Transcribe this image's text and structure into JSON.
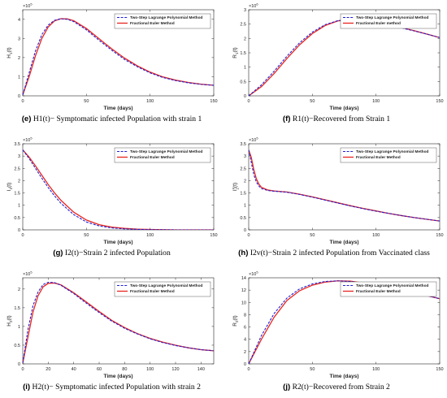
{
  "colors": {
    "two_step": "#1f1fd8",
    "euler": "#e8251e",
    "axis": "#262626"
  },
  "chart_data": [
    {
      "id": "e",
      "type": "line",
      "ylabel": "H1(t)",
      "xlabel": "Time (days)",
      "exponent": "×10^5",
      "xlim": [
        0,
        150
      ],
      "ylim": [
        0,
        4.5
      ],
      "xticks": [
        0,
        50,
        100,
        150
      ],
      "yticks": [
        0,
        1,
        2,
        3,
        4
      ],
      "legend": "top-right",
      "series": [
        {
          "name": "Two-Step Lagrange Polynomial Method",
          "style": "dashed",
          "x": [
            0,
            5,
            10,
            15,
            20,
            25,
            30,
            35,
            40,
            50,
            60,
            70,
            80,
            90,
            100,
            110,
            120,
            130,
            140,
            150
          ],
          "y": [
            0.05,
            1.2,
            2.35,
            3.2,
            3.7,
            3.95,
            4.03,
            4.0,
            3.88,
            3.45,
            2.9,
            2.38,
            1.9,
            1.52,
            1.2,
            0.96,
            0.8,
            0.68,
            0.6,
            0.55
          ]
        },
        {
          "name": "Fractional Euler Method",
          "style": "solid",
          "x": [
            0,
            5,
            10,
            15,
            20,
            25,
            30,
            35,
            40,
            50,
            60,
            70,
            80,
            90,
            100,
            110,
            120,
            130,
            140,
            150
          ],
          "y": [
            0.05,
            1.0,
            2.1,
            3.0,
            3.6,
            3.92,
            4.03,
            4.02,
            3.93,
            3.52,
            2.98,
            2.45,
            1.97,
            1.57,
            1.24,
            0.99,
            0.82,
            0.7,
            0.61,
            0.55
          ]
        }
      ],
      "caption_label": "(e)",
      "caption_text": "H1(t)− Symptomatic infected Population with strain 1"
    },
    {
      "id": "f",
      "type": "line",
      "ylabel": "R1(t)",
      "xlabel": "Time (days)",
      "exponent": "×10^6",
      "xlim": [
        0,
        150
      ],
      "ylim": [
        0,
        3
      ],
      "xticks": [
        0,
        50,
        100,
        150
      ],
      "yticks": [
        0,
        0.5,
        1,
        1.5,
        2,
        2.5,
        3
      ],
      "legend": "top-right",
      "series": [
        {
          "name": "Two-Step Lagrange Polynomial Method",
          "style": "dashed",
          "x": [
            0,
            10,
            20,
            30,
            40,
            50,
            60,
            70,
            80,
            90,
            100,
            110,
            120,
            130,
            140,
            150
          ],
          "y": [
            0.0,
            0.38,
            0.86,
            1.38,
            1.85,
            2.22,
            2.48,
            2.62,
            2.66,
            2.64,
            2.58,
            2.48,
            2.37,
            2.26,
            2.15,
            2.03
          ]
        },
        {
          "name": "Fractional Euler method",
          "style": "solid",
          "x": [
            0,
            10,
            20,
            30,
            40,
            50,
            60,
            70,
            80,
            90,
            100,
            110,
            120,
            130,
            140,
            150
          ],
          "y": [
            0.0,
            0.32,
            0.78,
            1.3,
            1.78,
            2.17,
            2.45,
            2.61,
            2.66,
            2.65,
            2.59,
            2.5,
            2.38,
            2.27,
            2.15,
            2.03
          ]
        }
      ],
      "caption_label": "(f)",
      "caption_text": "R1(t)−Recovered from Strain 1"
    },
    {
      "id": "g",
      "type": "line",
      "ylabel": "I2(t)",
      "xlabel": "Time (days)",
      "exponent": "×10^5",
      "xlim": [
        0,
        150
      ],
      "ylim": [
        0,
        3.5
      ],
      "xticks": [
        0,
        50,
        100,
        150
      ],
      "yticks": [
        0,
        0.5,
        1,
        1.5,
        2,
        2.5,
        3,
        3.5
      ],
      "legend": "top-right",
      "series": [
        {
          "name": "Two-Step Lagrange Polynomial Method",
          "style": "dashed",
          "x": [
            0,
            5,
            10,
            15,
            20,
            25,
            30,
            40,
            50,
            60,
            70,
            80,
            90,
            100,
            120,
            150
          ],
          "y": [
            3.25,
            2.9,
            2.5,
            2.1,
            1.72,
            1.38,
            1.08,
            0.62,
            0.32,
            0.16,
            0.08,
            0.04,
            0.02,
            0.01,
            0.0,
            0.0
          ]
        },
        {
          "name": "Fractional Euler Method",
          "style": "solid",
          "x": [
            0,
            5,
            10,
            15,
            20,
            25,
            30,
            40,
            50,
            60,
            70,
            80,
            90,
            100,
            120,
            150
          ],
          "y": [
            3.25,
            2.96,
            2.6,
            2.22,
            1.84,
            1.5,
            1.2,
            0.72,
            0.4,
            0.21,
            0.11,
            0.06,
            0.03,
            0.015,
            0.0,
            0.0
          ]
        }
      ],
      "caption_label": "(g)",
      "caption_text": "I2(t)−Strain 2 infected Population"
    },
    {
      "id": "h",
      "type": "line",
      "ylabel": "I2v(t)",
      "xlabel": "Time (days)",
      "exponent": "×10^5",
      "xlim": [
        0,
        150
      ],
      "ylim": [
        0,
        3.5
      ],
      "xticks": [
        0,
        50,
        100,
        150
      ],
      "yticks": [
        0,
        0.5,
        1,
        1.5,
        2,
        2.5,
        3,
        3.5
      ],
      "legend": "top-right",
      "series": [
        {
          "name": "Two-Step Lagrange Polynomial Method",
          "style": "dashed",
          "x": [
            0,
            2,
            4,
            6,
            8,
            10,
            15,
            20,
            25,
            30,
            40,
            50,
            60,
            70,
            80,
            90,
            100,
            110,
            120,
            130,
            140,
            150
          ],
          "y": [
            3.25,
            2.75,
            2.25,
            1.95,
            1.78,
            1.68,
            1.6,
            1.57,
            1.55,
            1.53,
            1.44,
            1.33,
            1.21,
            1.09,
            0.97,
            0.86,
            0.76,
            0.67,
            0.58,
            0.5,
            0.43,
            0.36
          ]
        },
        {
          "name": "Fractional Euler Method",
          "style": "solid",
          "x": [
            0,
            2,
            4,
            6,
            8,
            10,
            15,
            20,
            25,
            30,
            40,
            50,
            60,
            70,
            80,
            90,
            100,
            110,
            120,
            130,
            140,
            150
          ],
          "y": [
            3.25,
            2.95,
            2.45,
            2.08,
            1.86,
            1.73,
            1.62,
            1.58,
            1.56,
            1.54,
            1.45,
            1.34,
            1.22,
            1.1,
            0.98,
            0.87,
            0.77,
            0.67,
            0.58,
            0.5,
            0.43,
            0.36
          ]
        }
      ],
      "caption_label": "(h)",
      "caption_text": "I2v(t)−Strain 2 infected Population from Vaccinated class"
    },
    {
      "id": "i",
      "type": "line",
      "ylabel": "H2(t)",
      "xlabel": "Time (days)",
      "exponent": "×10^5",
      "xlim": [
        0,
        150
      ],
      "ylim": [
        0,
        2.3
      ],
      "xticks": [
        0,
        20,
        40,
        60,
        80,
        100,
        120,
        140
      ],
      "yticks": [
        0,
        0.5,
        1,
        1.5,
        2
      ],
      "legend": "top-right",
      "series": [
        {
          "name": "Two-Step Lagrange Polynomial Method",
          "style": "dashed",
          "x": [
            0,
            4,
            8,
            12,
            16,
            20,
            25,
            30,
            40,
            50,
            60,
            70,
            80,
            90,
            100,
            110,
            120,
            130,
            140,
            150
          ],
          "y": [
            0.02,
            0.9,
            1.55,
            1.92,
            2.12,
            2.18,
            2.17,
            2.1,
            1.88,
            1.62,
            1.37,
            1.14,
            0.95,
            0.8,
            0.67,
            0.57,
            0.49,
            0.43,
            0.38,
            0.35
          ]
        },
        {
          "name": "Fractional Euler Method",
          "style": "solid",
          "x": [
            0,
            4,
            8,
            12,
            16,
            20,
            25,
            30,
            40,
            50,
            60,
            70,
            80,
            90,
            100,
            110,
            120,
            130,
            140,
            150
          ],
          "y": [
            0.02,
            0.7,
            1.38,
            1.82,
            2.06,
            2.15,
            2.16,
            2.11,
            1.9,
            1.65,
            1.4,
            1.16,
            0.97,
            0.81,
            0.68,
            0.58,
            0.5,
            0.43,
            0.38,
            0.35
          ]
        }
      ],
      "caption_label": "(i)",
      "caption_text": "H2(t)− Symptomatic infected Population with strain 2"
    },
    {
      "id": "j",
      "type": "line",
      "ylabel": "R2(t)",
      "xlabel": "Time (days)",
      "exponent": "×10^5",
      "xlim": [
        0,
        150
      ],
      "ylim": [
        0,
        14
      ],
      "xticks": [
        0,
        50,
        100,
        150
      ],
      "yticks": [
        0,
        2,
        4,
        6,
        8,
        10,
        12,
        14
      ],
      "legend": "top-right",
      "series": [
        {
          "name": "Two-Step Lagrange Polynomial Method",
          "style": "dashed",
          "x": [
            0,
            10,
            20,
            30,
            40,
            50,
            60,
            70,
            80,
            90,
            100,
            110,
            120,
            130,
            140,
            150
          ],
          "y": [
            0.0,
            4.6,
            8.2,
            10.7,
            12.2,
            13.0,
            13.4,
            13.5,
            13.4,
            13.1,
            12.7,
            12.3,
            11.9,
            11.5,
            11.1,
            10.6
          ]
        },
        {
          "name": "Fractional Euler Method",
          "style": "solid",
          "x": [
            0,
            10,
            20,
            30,
            40,
            50,
            60,
            70,
            80,
            90,
            100,
            110,
            120,
            130,
            140,
            150
          ],
          "y": [
            0.0,
            4.0,
            7.6,
            10.3,
            11.9,
            12.8,
            13.3,
            13.5,
            13.45,
            13.15,
            12.75,
            12.35,
            11.95,
            11.5,
            11.1,
            10.6
          ]
        }
      ],
      "caption_label": "(j)",
      "caption_text": "R2(t)−Recovered from Strain 2"
    }
  ]
}
